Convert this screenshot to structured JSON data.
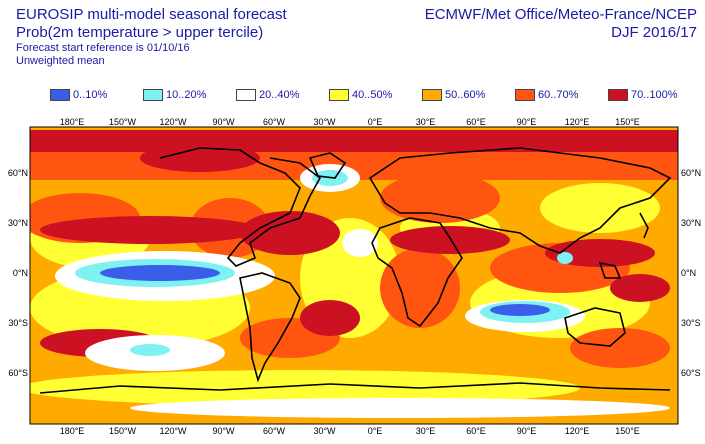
{
  "header": {
    "title": "EUROSIP multi-model seasonal forecast",
    "subtitle": "Prob(2m temperature > upper tercile)",
    "start_reference": "Forecast start reference is 01/10/16",
    "weighting": "Unweighted mean",
    "centres": "ECMWF/Met Office/Meteo-France/NCEP",
    "season": "DJF 2016/17"
  },
  "legend": [
    {
      "label": "0..10%",
      "color": "#3b5ee8"
    },
    {
      "label": "10..20%",
      "color": "#7ef2f2"
    },
    {
      "label": "20..40%",
      "color": "#ffffff"
    },
    {
      "label": "40..50%",
      "color": "#ffff33"
    },
    {
      "label": "50..60%",
      "color": "#ffaa00"
    },
    {
      "label": "60..70%",
      "color": "#ff5511"
    },
    {
      "label": "70..100%",
      "color": "#cc1122"
    }
  ],
  "axes": {
    "lon_top": [
      "180°E",
      "150°W",
      "120°W",
      "90°W",
      "60°W",
      "30°W",
      "0°E",
      "30°E",
      "60°E",
      "90°E",
      "120°E",
      "150°E"
    ],
    "lon_bottom": [
      "180°E",
      "150°W",
      "120°W",
      "90°W",
      "60°W",
      "30°W",
      "0°E",
      "30°E",
      "60°E",
      "90°E",
      "120°E",
      "150°E"
    ],
    "lat_left": [
      "60°N",
      "30°N",
      "0°N",
      "30°S",
      "60°S"
    ],
    "lat_right": [
      "60°N",
      "30°N",
      "0°N",
      "30°S",
      "60°S"
    ]
  }
}
